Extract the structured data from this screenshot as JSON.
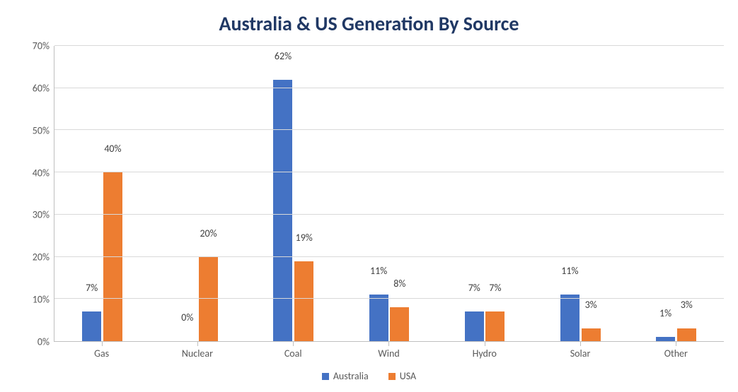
{
  "chart": {
    "type": "bar",
    "title": "Australia & US Generation By Source",
    "title_fontsize": 28,
    "title_color": "#203864",
    "categories": [
      "Gas",
      "Nuclear",
      "Coal",
      "Wind",
      "Hydro",
      "Solar",
      "Other"
    ],
    "series": [
      {
        "name": "Australia",
        "color": "#4472c4",
        "values": [
          7,
          0,
          62,
          11,
          7,
          11,
          1
        ]
      },
      {
        "name": "USA",
        "color": "#ed7d31",
        "values": [
          40,
          20,
          19,
          8,
          7,
          3,
          3
        ]
      }
    ],
    "y": {
      "min": 0,
      "max": 70,
      "tick_step": 10,
      "format_suffix": "%",
      "ticks": [
        "0%",
        "10%",
        "20%",
        "30%",
        "40%",
        "50%",
        "60%",
        "70%"
      ]
    },
    "label_fontsize": 14,
    "axis_text_color": "#595959",
    "data_label_color": "#404040",
    "grid_color": "#d9d9d9",
    "axis_line_color": "#bfbfbf",
    "background_color": "#ffffff",
    "bar_width_pct": 20,
    "bar_gap_pct": 2,
    "legend_position": "bottom"
  }
}
